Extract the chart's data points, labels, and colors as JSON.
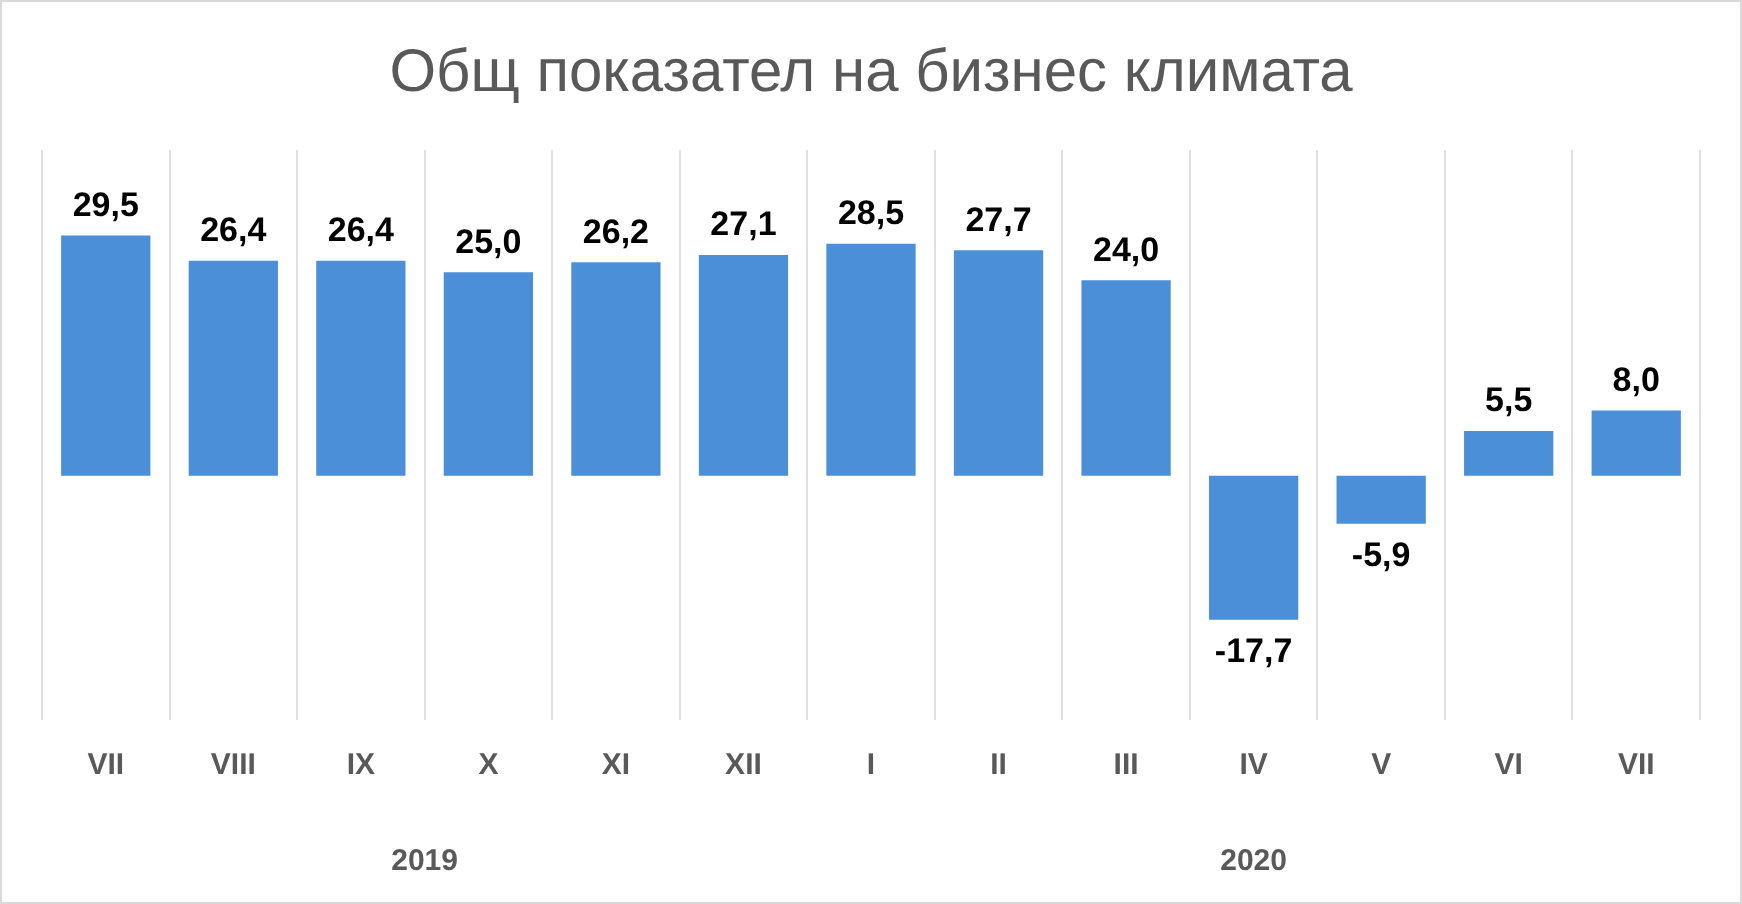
{
  "chart_data": {
    "type": "bar",
    "title": "Общ показател на бизнес климата",
    "categories": [
      "VII",
      "VIII",
      "IX",
      "X",
      "XI",
      "XII",
      "I",
      "II",
      "III",
      "IV",
      "V",
      "VI",
      "VII"
    ],
    "values": [
      29.5,
      26.4,
      26.4,
      25.0,
      26.2,
      27.1,
      28.5,
      27.7,
      24.0,
      -17.7,
      -5.9,
      5.5,
      8.0
    ],
    "value_labels": [
      "29,5",
      "26,4",
      "26,4",
      "25,0",
      "26,2",
      "27,1",
      "28,5",
      "27,7",
      "24,0",
      "-17,7",
      "-5,9",
      "5,5",
      "8,0"
    ],
    "color": "#4a8fd8",
    "grid": "x",
    "annotations": [
      "2019",
      "2020"
    ]
  }
}
